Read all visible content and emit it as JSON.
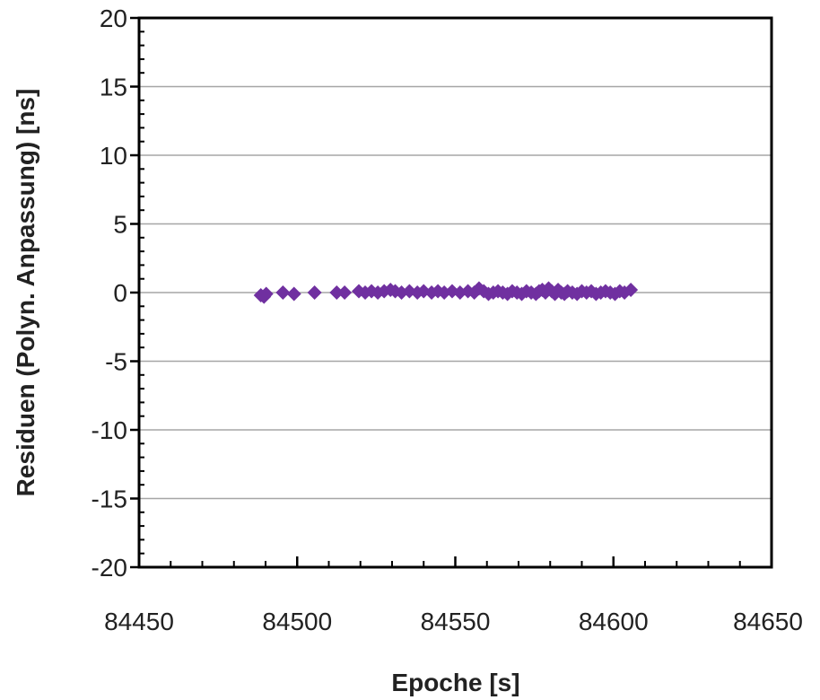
{
  "chart_data": {
    "type": "scatter",
    "xlabel": "Epoche [s]",
    "ylabel": "Residuen (Polyn. Anpassung) [ns]",
    "xlim": [
      84450,
      84650
    ],
    "ylim": [
      -20,
      20
    ],
    "x_ticks": [
      84450,
      84500,
      84550,
      84600,
      84650
    ],
    "y_ticks": [
      20,
      15,
      10,
      5,
      0,
      -5,
      -10,
      -15,
      -20
    ],
    "x_tick_labels": [
      "84450",
      "84500",
      "84550",
      "84600",
      "84650"
    ],
    "y_tick_labels": [
      "20",
      "15",
      "10",
      "5",
      "0",
      "-5",
      "-10",
      "-15",
      "-20"
    ],
    "grid": "horizontal",
    "marker": "diamond",
    "marker_color": "#7030A0",
    "series": [
      {
        "points": [
          [
            84488.5,
            -0.2
          ],
          [
            84489.5,
            -0.3
          ],
          [
            84490.2,
            -0.1
          ],
          [
            84495.5,
            0.0
          ],
          [
            84499.0,
            -0.1
          ],
          [
            84505.5,
            0.0
          ],
          [
            84512.5,
            0.0
          ],
          [
            84515.0,
            0.0
          ],
          [
            84519.5,
            0.1
          ],
          [
            84521.5,
            0.0
          ],
          [
            84523.5,
            0.1
          ],
          [
            84525.5,
            0.0
          ],
          [
            84527.5,
            0.1
          ],
          [
            84529.5,
            0.2
          ],
          [
            84531.0,
            0.1
          ],
          [
            84533.0,
            0.0
          ],
          [
            84535.5,
            0.1
          ],
          [
            84538.0,
            0.0
          ],
          [
            84540.0,
            0.1
          ],
          [
            84542.5,
            0.0
          ],
          [
            84544.5,
            0.1
          ],
          [
            84546.5,
            0.0
          ],
          [
            84549.0,
            0.1
          ],
          [
            84551.5,
            0.0
          ],
          [
            84554.0,
            0.1
          ],
          [
            84556.0,
            0.0
          ],
          [
            84557.5,
            0.3
          ],
          [
            84559.0,
            0.1
          ],
          [
            84560.5,
            -0.1
          ],
          [
            84562.0,
            0.0
          ],
          [
            84563.5,
            0.1
          ],
          [
            84565.0,
            0.0
          ],
          [
            84566.5,
            -0.1
          ],
          [
            84568.0,
            0.1
          ],
          [
            84569.5,
            0.0
          ],
          [
            84571.0,
            -0.1
          ],
          [
            84572.5,
            0.1
          ],
          [
            84574.0,
            0.0
          ],
          [
            84575.5,
            -0.1
          ],
          [
            84576.5,
            0.1
          ],
          [
            84577.5,
            0.2
          ],
          [
            84578.5,
            0.0
          ],
          [
            84579.5,
            0.3
          ],
          [
            84580.5,
            0.1
          ],
          [
            84581.5,
            -0.1
          ],
          [
            84582.5,
            0.2
          ],
          [
            84583.5,
            0.0
          ],
          [
            84584.5,
            -0.1
          ],
          [
            84585.5,
            0.1
          ],
          [
            84587.0,
            0.0
          ],
          [
            84588.5,
            -0.1
          ],
          [
            84590.0,
            0.1
          ],
          [
            84591.5,
            0.0
          ],
          [
            84593.0,
            0.1
          ],
          [
            84594.5,
            -0.1
          ],
          [
            84596.0,
            0.0
          ],
          [
            84597.5,
            0.1
          ],
          [
            84599.0,
            0.0
          ],
          [
            84600.5,
            -0.1
          ],
          [
            84602.0,
            0.1
          ],
          [
            84603.5,
            0.0
          ],
          [
            84605.5,
            0.2
          ]
        ]
      }
    ]
  }
}
